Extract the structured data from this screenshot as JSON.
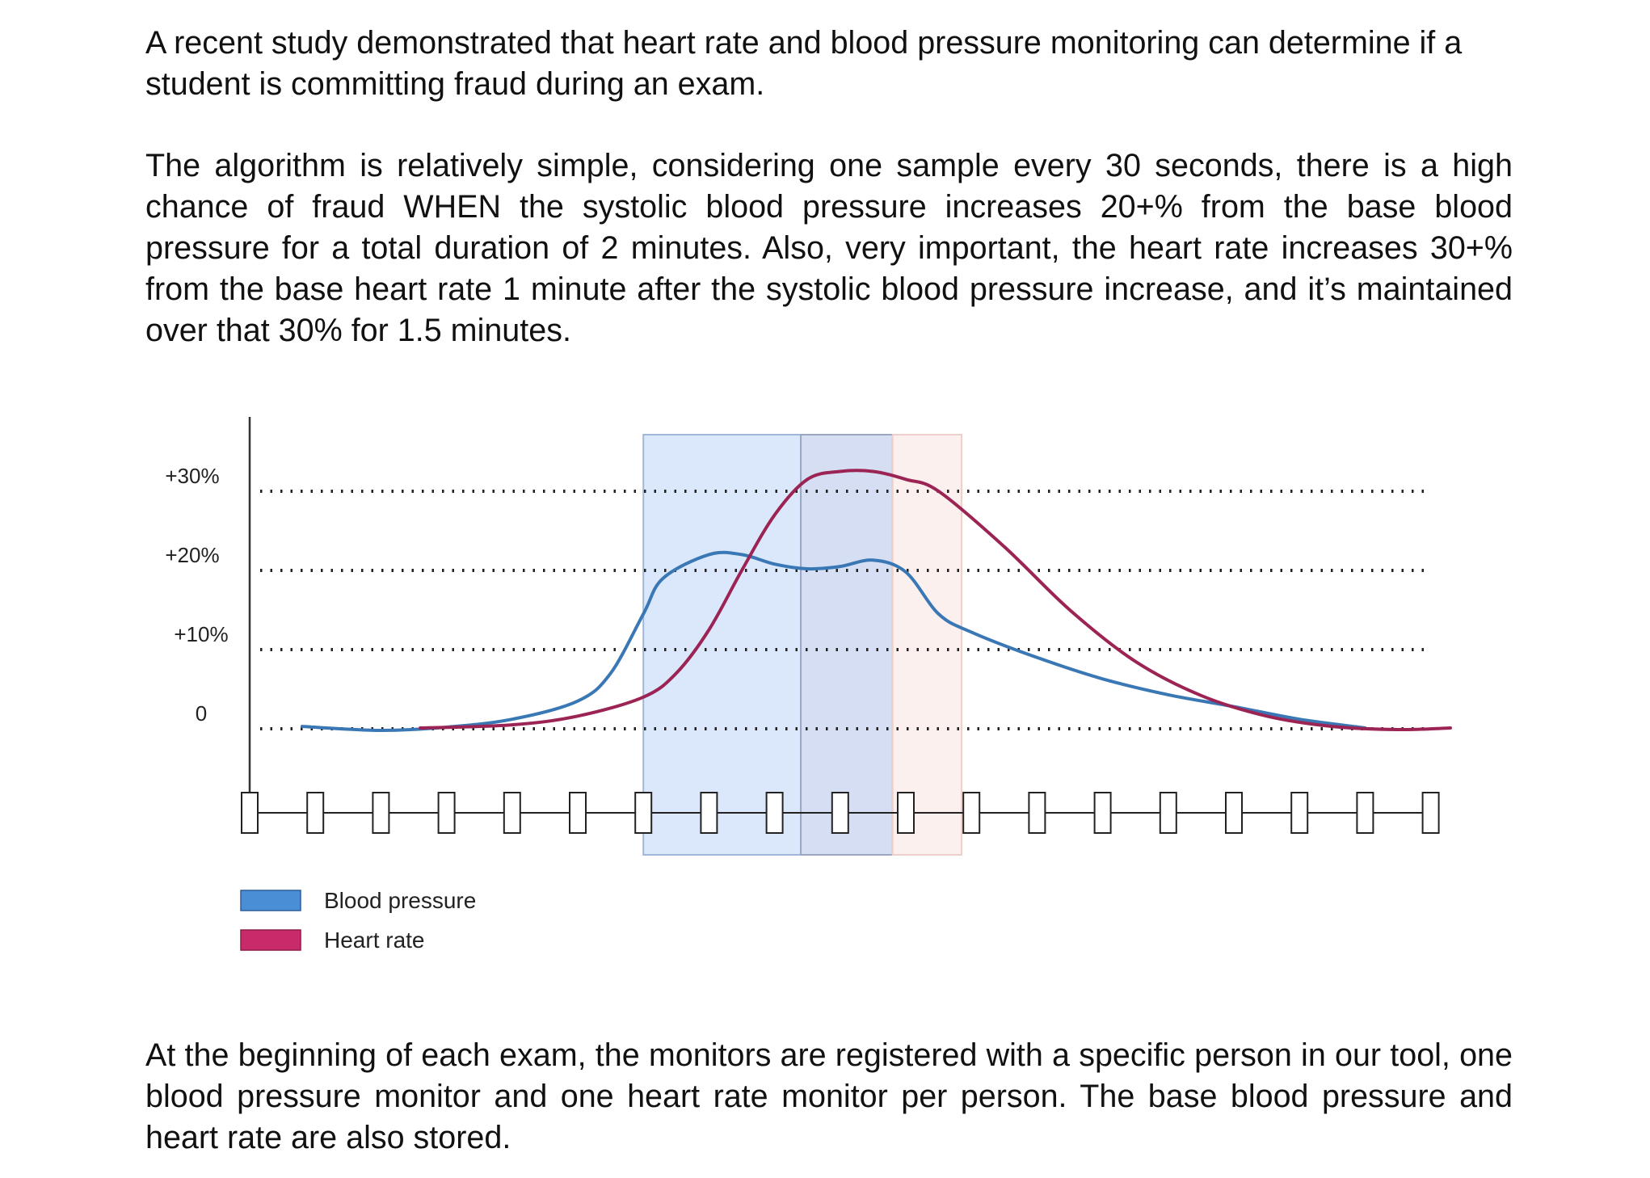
{
  "paragraphs": {
    "intro": "A recent study demonstrated that heart rate and blood pressure monitoring can determine if a student is committing fraud during an exam.",
    "algorithm": "The algorithm is relatively simple, considering one sample every 30 seconds, there is a high chance of fraud WHEN the systolic blood pressure increases 20+% from the base blood pressure for a total duration of 2 minutes. Also, very important, the heart rate increases 30+% from the base heart rate 1 minute after the systolic blood pressure increase, and it’s maintained over that 30% for 1.5 minutes.",
    "setup": "At the beginning of each exam, the monitors are registered with a specific person in our tool, one blood pressure monitor and one heart rate monitor per person. The base blood pressure and heart rate are also stored."
  },
  "chart_data": {
    "type": "line",
    "y_tick_labels": [
      "+30%",
      "+20%",
      "+10%",
      "0"
    ],
    "y_ticks": [
      30,
      20,
      10,
      0
    ],
    "ylim": [
      0,
      40
    ],
    "grid": "dotted horizontal lines",
    "legend_position": "bottom-left",
    "sample_count": 19,
    "colors": {
      "blood_pressure": "#3a78b5",
      "heart_rate": "#9c2454",
      "blood_pressure_legend": "#4a8fd6",
      "heart_rate_legend": "#c92a6a"
    },
    "highlighted_regions": [
      {
        "from_sample": 6.0,
        "to_sample": 9.8,
        "color": "#dbe8fb"
      },
      {
        "from_sample": 8.4,
        "to_sample": 9.8,
        "color": "#d6def3"
      },
      {
        "from_sample": 9.8,
        "to_sample": 10.85,
        "color": "#fbf0ee"
      }
    ],
    "series": [
      {
        "name": "Blood pressure",
        "points": [
          [
            0.8,
            0.3
          ],
          [
            2,
            -0.2
          ],
          [
            3,
            0.2
          ],
          [
            4,
            1.2
          ],
          [
            5,
            3.5
          ],
          [
            5.5,
            7
          ],
          [
            6,
            14.5
          ],
          [
            6.3,
            19
          ],
          [
            7,
            22
          ],
          [
            7.5,
            22
          ],
          [
            8,
            20.8
          ],
          [
            8.5,
            20.2
          ],
          [
            9,
            20.5
          ],
          [
            9.5,
            21.3
          ],
          [
            10,
            19.8
          ],
          [
            10.5,
            14.5
          ],
          [
            11,
            12.2
          ],
          [
            12,
            9
          ],
          [
            13,
            6.3
          ],
          [
            14,
            4.3
          ],
          [
            15,
            2.8
          ],
          [
            16,
            1.2
          ],
          [
            17,
            0.1
          ]
        ]
      },
      {
        "name": "Heart rate",
        "points": [
          [
            2.6,
            0.1
          ],
          [
            4,
            0.5
          ],
          [
            5,
            1.6
          ],
          [
            6,
            4
          ],
          [
            6.5,
            7
          ],
          [
            7,
            12.5
          ],
          [
            7.5,
            20
          ],
          [
            8,
            27
          ],
          [
            8.5,
            31.5
          ],
          [
            9,
            32.5
          ],
          [
            9.5,
            32.5
          ],
          [
            10,
            31.5
          ],
          [
            10.5,
            30
          ],
          [
            11.5,
            23
          ],
          [
            12.5,
            15
          ],
          [
            13.5,
            8.5
          ],
          [
            14.5,
            4.2
          ],
          [
            15.5,
            1.6
          ],
          [
            16.5,
            0.3
          ],
          [
            17.5,
            -0.1
          ],
          [
            18.3,
            0.1
          ]
        ]
      }
    ]
  }
}
